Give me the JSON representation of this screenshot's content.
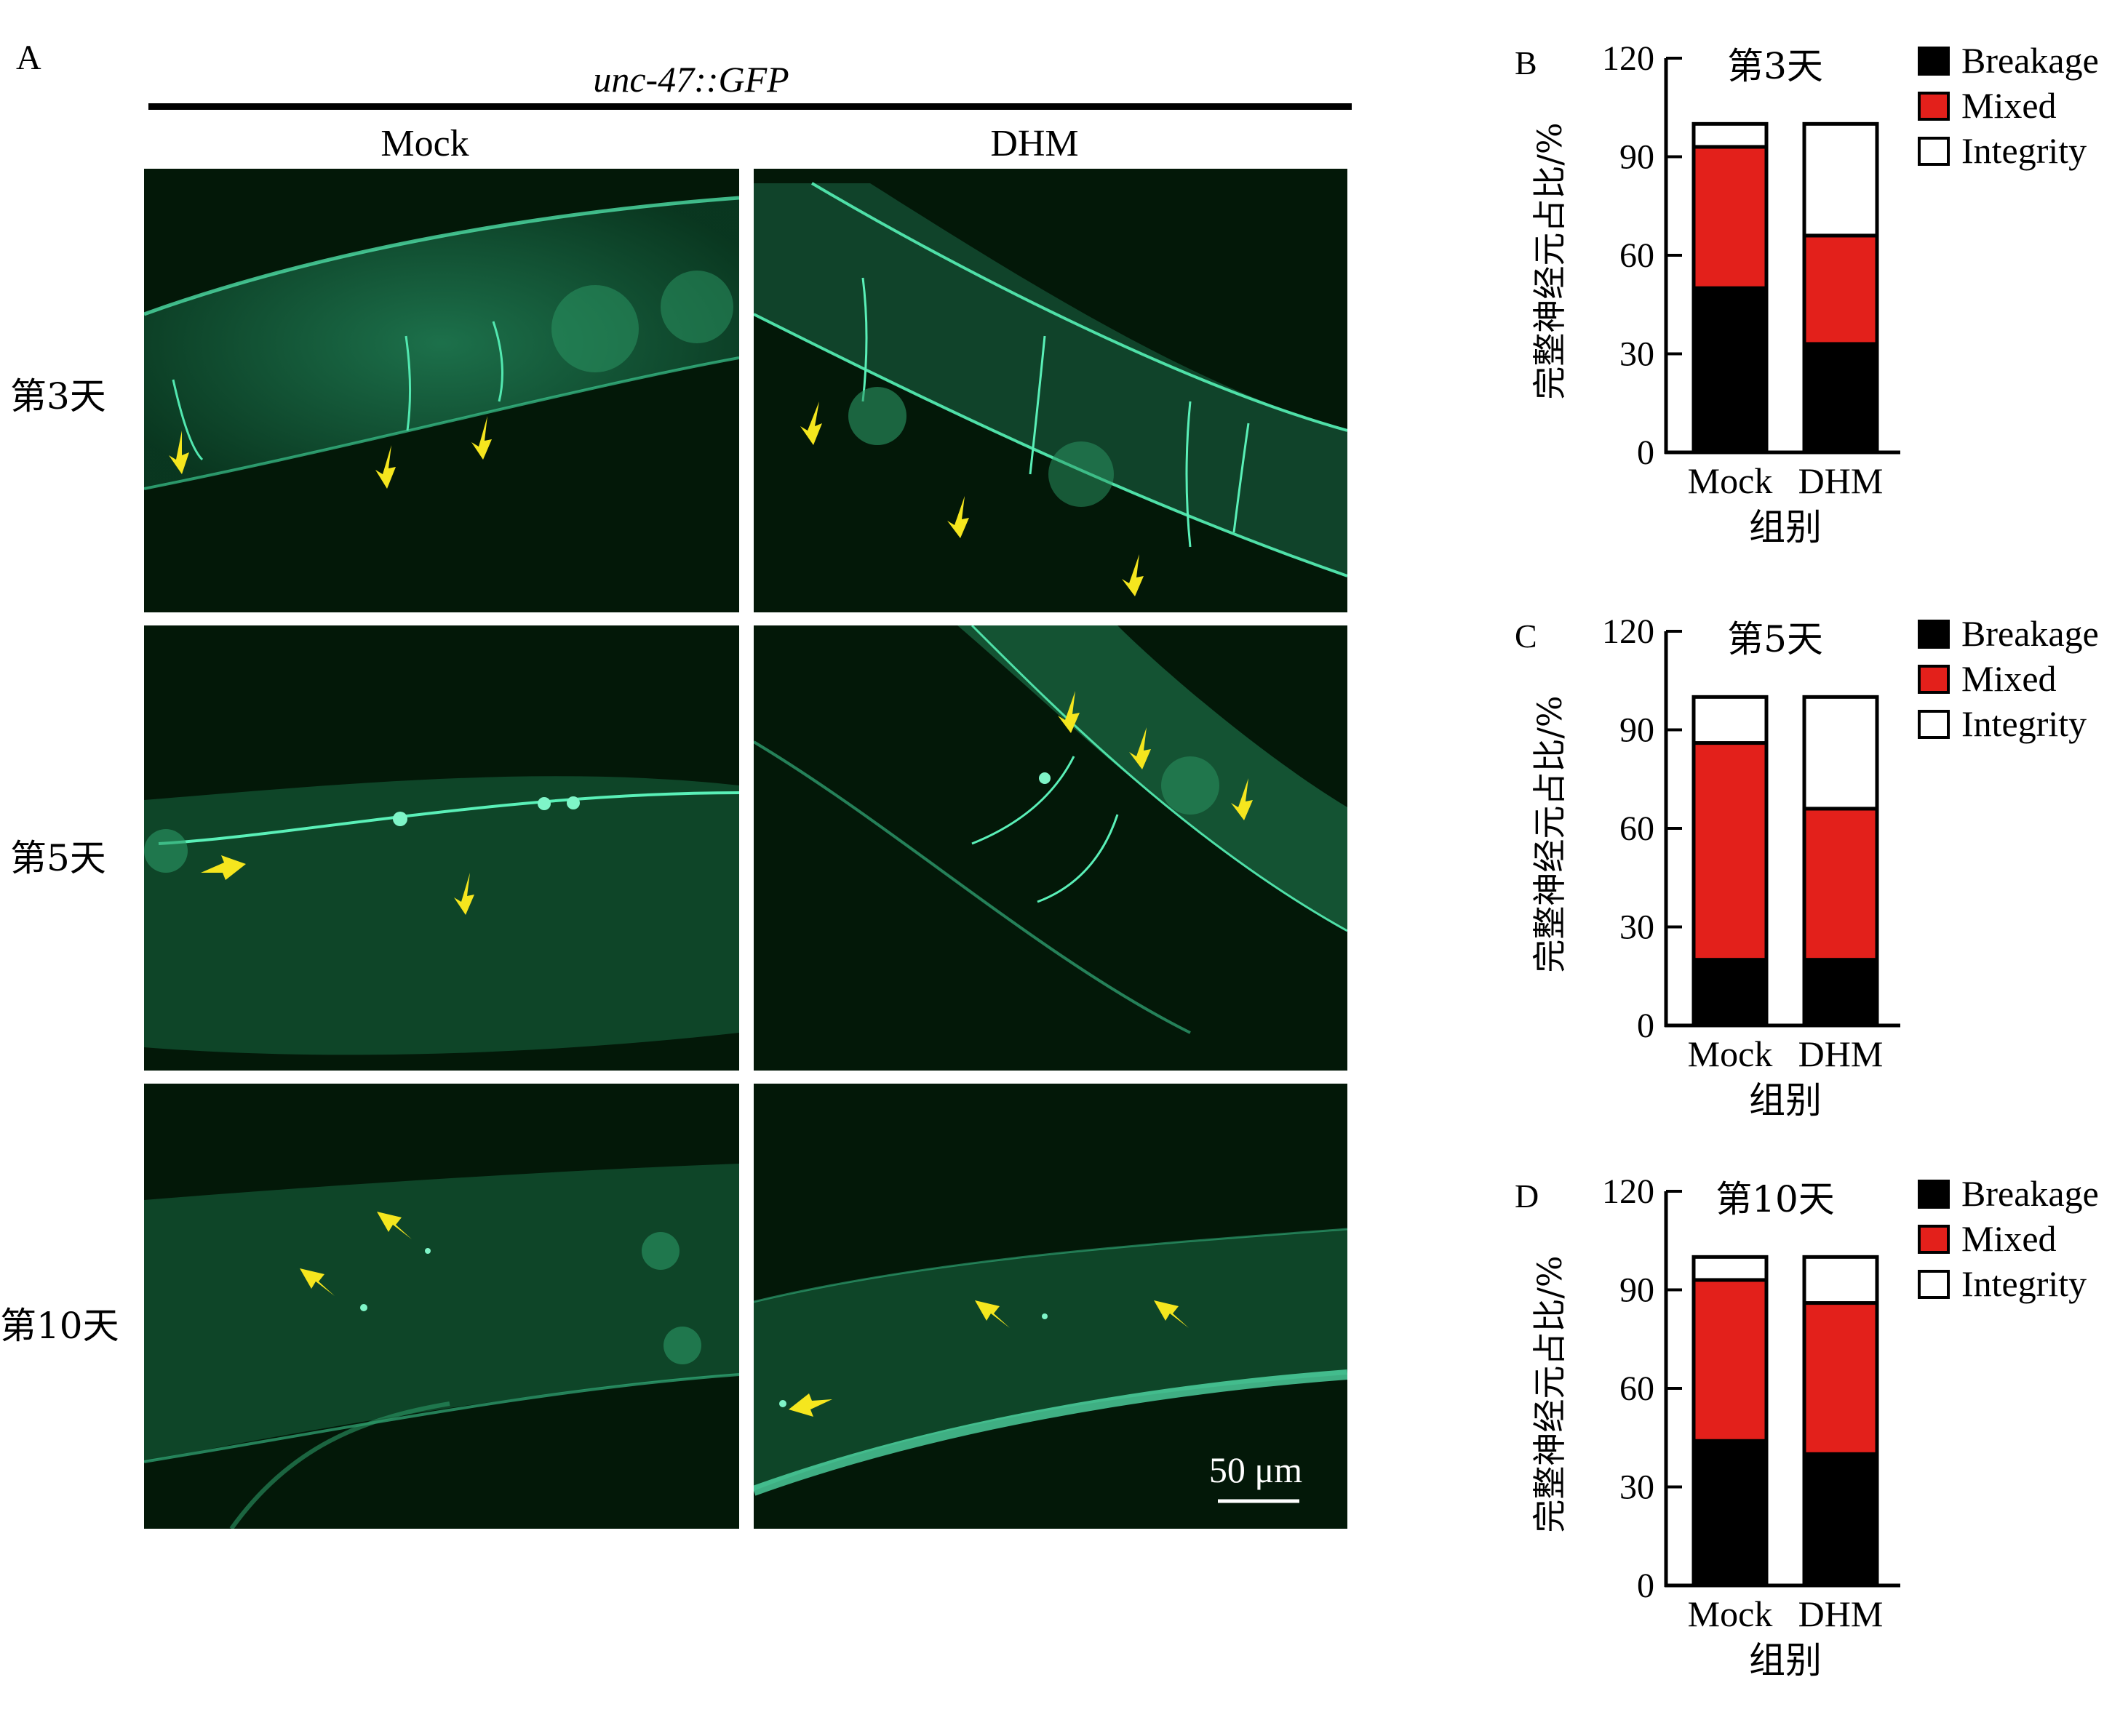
{
  "panel_a": {
    "letter": "A",
    "title": "unc-47::GFP",
    "columns": [
      "Mock",
      "DHM"
    ],
    "rows": [
      "第3天",
      "第5天",
      "第10天"
    ],
    "scale_bar": "50 μm",
    "colors": {
      "background": "#031808",
      "fluorescence": "#3fd69a",
      "arrow": "#f5e61e"
    }
  },
  "legend": [
    {
      "label": "Breakage",
      "color": "#000000"
    },
    {
      "label": "Mixed",
      "color": "#e3201b"
    },
    {
      "label": "Integrity",
      "color": "#ffffff"
    }
  ],
  "chart_data": [
    {
      "type": "bar",
      "stacked": true,
      "panel": "B",
      "title": "第3天",
      "categories": [
        "Mock",
        "DHM"
      ],
      "series": [
        {
          "name": "Breakage",
          "values": [
            50,
            33
          ]
        },
        {
          "name": "Mixed",
          "values": [
            43,
            33
          ]
        },
        {
          "name": "Integrity",
          "values": [
            7,
            34
          ]
        }
      ],
      "xlabel": "组别",
      "ylabel": "完整神经元占比/%",
      "ylim": [
        0,
        120
      ],
      "yticks": [
        0,
        30,
        60,
        90,
        120
      ]
    },
    {
      "type": "bar",
      "stacked": true,
      "panel": "C",
      "title": "第5天",
      "categories": [
        "Mock",
        "DHM"
      ],
      "series": [
        {
          "name": "Breakage",
          "values": [
            20,
            20
          ]
        },
        {
          "name": "Mixed",
          "values": [
            66,
            46
          ]
        },
        {
          "name": "Integrity",
          "values": [
            14,
            34
          ]
        }
      ],
      "xlabel": "组别",
      "ylabel": "完整神经元占比/%",
      "ylim": [
        0,
        120
      ],
      "yticks": [
        0,
        30,
        60,
        90,
        120
      ]
    },
    {
      "type": "bar",
      "stacked": true,
      "panel": "D",
      "title": "第10天",
      "categories": [
        "Mock",
        "DHM"
      ],
      "series": [
        {
          "name": "Breakage",
          "values": [
            44,
            40
          ]
        },
        {
          "name": "Mixed",
          "values": [
            49,
            46
          ]
        },
        {
          "name": "Integrity",
          "values": [
            7,
            14
          ]
        }
      ],
      "xlabel": "组别",
      "ylabel": "完整神经元占比/%",
      "ylim": [
        0,
        120
      ],
      "yticks": [
        0,
        30,
        60,
        90,
        120
      ]
    }
  ]
}
